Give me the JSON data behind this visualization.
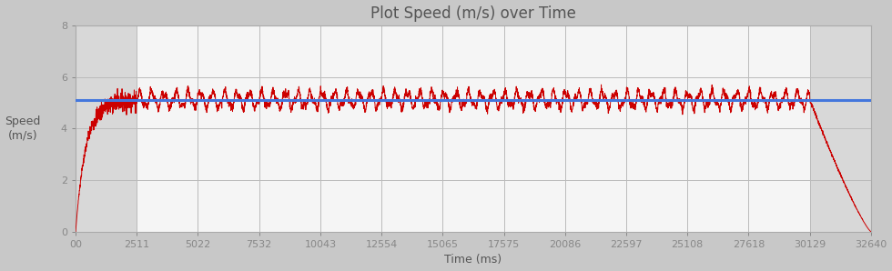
{
  "title": "Plot Speed (m/s) over Time",
  "xlabel": "Time (ms)",
  "ylabel": "Speed\n(m/s)",
  "xlim": [
    0,
    32640
  ],
  "ylim": [
    0,
    8
  ],
  "yticks": [
    0,
    2,
    4,
    6,
    8
  ],
  "xtick_values": [
    0,
    2511,
    5022,
    7532,
    10043,
    12554,
    15065,
    17575,
    20086,
    22597,
    25108,
    27618,
    30129,
    32640
  ],
  "xtick_labels": [
    "00",
    "2511",
    "5022",
    "7532",
    "10043",
    "12554",
    "15065",
    "17575",
    "20086",
    "22597",
    "25108",
    "27618",
    "30129",
    "32640"
  ],
  "avg_speed": 5.12,
  "avg_line_color": "#4477dd",
  "speed_line_color": "#cc0000",
  "background_color": "#c8c8c8",
  "plot_bg_color": "#d8d8d8",
  "active_region_color": "#f5f5f5",
  "gray_region_end1": 2511,
  "gray_region_start2": 30129,
  "total_time": 32640,
  "accel_end": 2511,
  "decel_start": 30129,
  "title_fontsize": 12,
  "label_fontsize": 9,
  "tick_fontsize": 8,
  "grid_color": "#bbbbbb"
}
